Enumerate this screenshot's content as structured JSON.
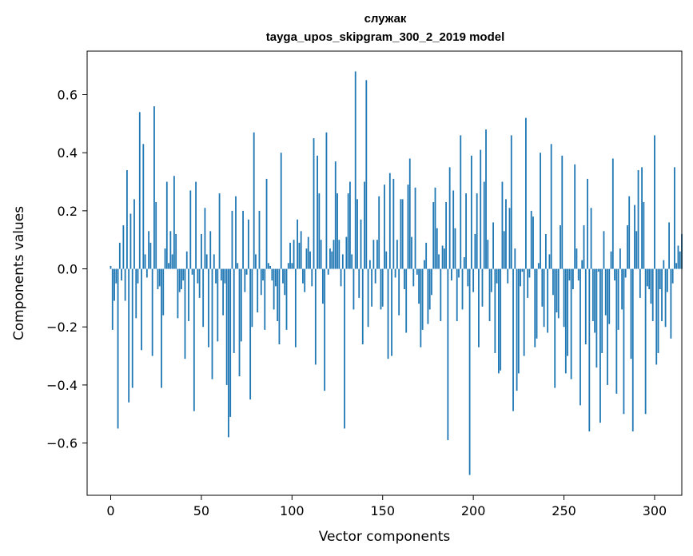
{
  "chart_data": {
    "type": "bar",
    "title": "служак",
    "subtitle": "tayga_upos_skipgram_300_2_2019 model",
    "xlabel": "Vector components",
    "ylabel": "Components values",
    "xlim": [
      -13,
      315
    ],
    "ylim": [
      -0.78,
      0.75
    ],
    "xticks": [
      0,
      50,
      100,
      150,
      200,
      250,
      300
    ],
    "yticks": [
      -0.6,
      -0.4,
      -0.2,
      0.0,
      0.2,
      0.4,
      0.6
    ],
    "xtick_labels": [
      "0",
      "50",
      "100",
      "150",
      "200",
      "250",
      "300"
    ],
    "ytick_labels": [
      "−0.6",
      "−0.4",
      "−0.2",
      "0.0",
      "0.2",
      "0.4",
      "0.6"
    ],
    "bar_color": "#1f77b4",
    "grid": false,
    "values": [
      0.01,
      -0.21,
      -0.11,
      -0.05,
      -0.55,
      0.09,
      -0.04,
      0.15,
      -0.11,
      0.34,
      -0.46,
      0.19,
      -0.41,
      0.24,
      -0.17,
      -0.05,
      0.54,
      -0.28,
      0.43,
      0.05,
      -0.03,
      0.13,
      0.09,
      -0.3,
      0.56,
      0.23,
      -0.07,
      -0.06,
      -0.41,
      -0.16,
      0.07,
      0.3,
      0.02,
      0.13,
      0.05,
      0.32,
      0.12,
      -0.17,
      -0.08,
      -0.07,
      -0.04,
      -0.31,
      0.06,
      -0.18,
      0.27,
      -0.02,
      -0.49,
      0.3,
      -0.05,
      -0.1,
      0.12,
      -0.2,
      0.21,
      0.05,
      -0.27,
      0.13,
      -0.38,
      0.05,
      -0.05,
      -0.25,
      0.26,
      -0.04,
      -0.16,
      -0.05,
      -0.4,
      -0.58,
      -0.51,
      0.2,
      -0.29,
      0.25,
      0.02,
      -0.37,
      -0.25,
      0.2,
      -0.08,
      -0.02,
      0.17,
      -0.45,
      -0.2,
      0.47,
      0.05,
      -0.15,
      0.2,
      -0.09,
      -0.04,
      -0.21,
      0.31,
      0.02,
      0.01,
      -0.04,
      -0.14,
      -0.06,
      -0.18,
      -0.26,
      0.4,
      -0.05,
      -0.09,
      -0.21,
      0.02,
      0.09,
      0.02,
      0.1,
      -0.27,
      0.17,
      0.09,
      0.13,
      -0.05,
      -0.08,
      0.07,
      0.11,
      0.06,
      -0.06,
      0.45,
      -0.33,
      0.39,
      0.26,
      0.1,
      -0.12,
      -0.42,
      0.47,
      -0.02,
      0.07,
      0.06,
      0.1,
      0.37,
      0.26,
      0.1,
      -0.06,
      0.05,
      -0.55,
      0.11,
      0.26,
      0.3,
      0.05,
      -0.14,
      0.68,
      0.24,
      -0.1,
      0.17,
      -0.26,
      0.3,
      0.65,
      -0.2,
      0.03,
      -0.13,
      0.1,
      -0.05,
      0.1,
      0.25,
      -0.14,
      -0.13,
      0.29,
      0.06,
      -0.31,
      0.33,
      -0.3,
      0.31,
      -0.03,
      0.1,
      -0.16,
      0.24,
      0.24,
      -0.07,
      -0.22,
      0.29,
      0.38,
      0.11,
      -0.06,
      0.28,
      -0.02,
      -0.12,
      -0.27,
      -0.21,
      0.03,
      0.09,
      -0.19,
      -0.14,
      -0.09,
      0.23,
      0.28,
      0.14,
      0.05,
      -0.18,
      0.08,
      0.07,
      0.23,
      -0.59,
      0.35,
      -0.04,
      0.27,
      0.14,
      -0.18,
      -0.03,
      0.46,
      -0.14,
      0.04,
      0.26,
      -0.06,
      -0.71,
      0.39,
      -0.08,
      0.12,
      0.26,
      -0.27,
      0.41,
      -0.13,
      0.3,
      0.48,
      0.1,
      -0.18,
      -0.08,
      0.16,
      -0.29,
      -0.05,
      -0.36,
      -0.35,
      0.3,
      0.13,
      0.24,
      -0.05,
      0.21,
      0.46,
      -0.49,
      0.07,
      -0.42,
      -0.36,
      -0.06,
      -0.01,
      -0.3,
      0.52,
      -0.1,
      -0.03,
      0.2,
      0.18,
      -0.27,
      -0.24,
      0.02,
      0.4,
      -0.13,
      -0.2,
      0.12,
      -0.22,
      0.05,
      0.43,
      -0.09,
      -0.41,
      -0.15,
      -0.17,
      0.15,
      0.39,
      -0.2,
      -0.36,
      -0.3,
      -0.04,
      -0.38,
      -0.07,
      0.36,
      0.07,
      -0.04,
      -0.47,
      0.03,
      0.15,
      -0.26,
      0.31,
      -0.56,
      0.21,
      -0.18,
      -0.22,
      -0.34,
      -0.01,
      -0.53,
      -0.29,
      0.13,
      -0.16,
      -0.4,
      -0.19,
      0.06,
      0.38,
      -0.04,
      -0.43,
      -0.21,
      0.07,
      -0.14,
      -0.5,
      -0.03,
      0.15,
      0.25,
      -0.31,
      -0.56,
      0.22,
      0.13,
      0.34,
      -0.1,
      0.35,
      0.23,
      -0.5,
      -0.06,
      -0.07,
      -0.12,
      -0.18,
      0.46,
      -0.33,
      -0.29,
      -0.07,
      -0.18,
      0.03,
      -0.2,
      -0.08,
      0.16,
      -0.24,
      -0.05,
      0.35,
      0.02,
      0.08,
      0.06,
      0.12
    ]
  }
}
